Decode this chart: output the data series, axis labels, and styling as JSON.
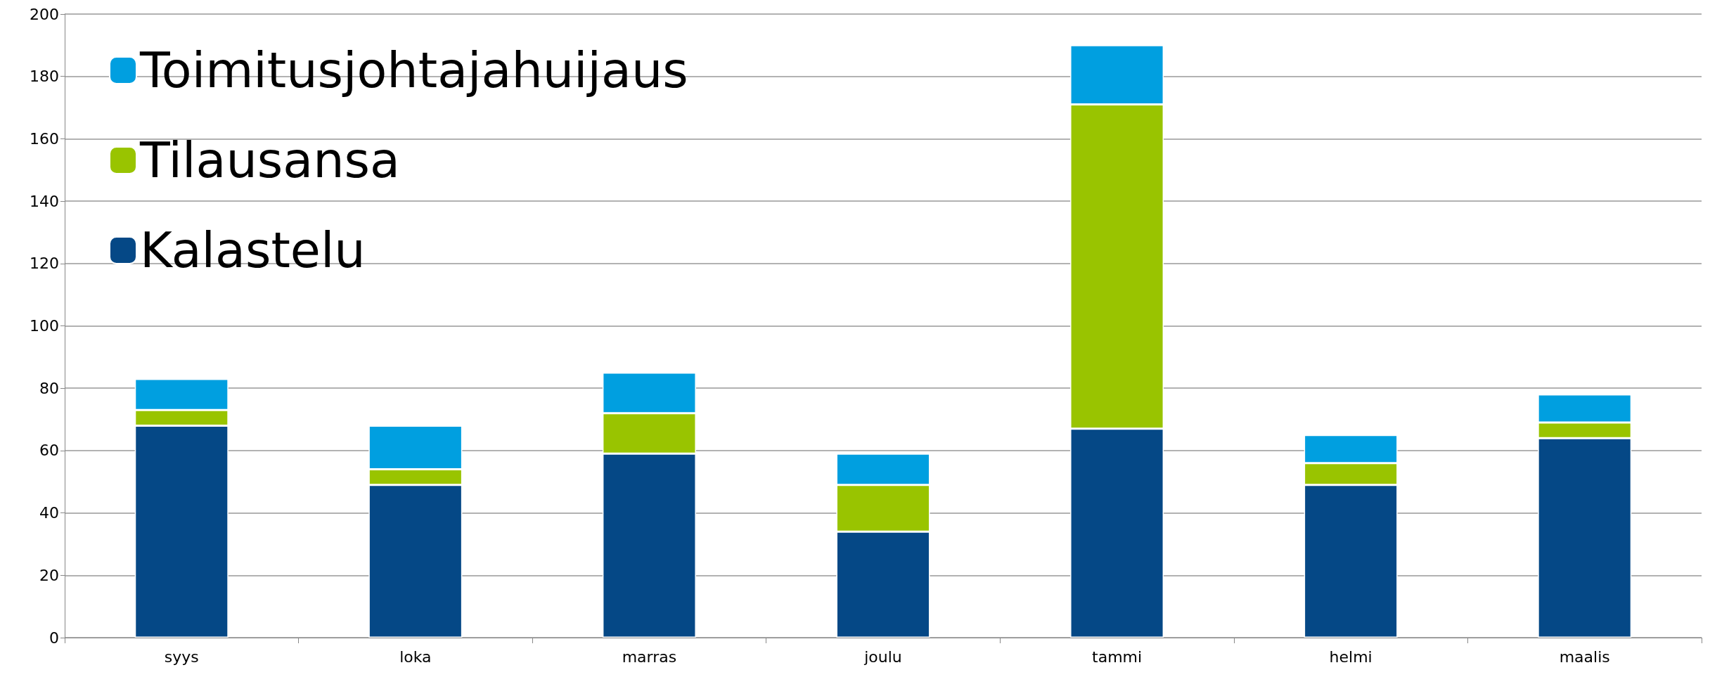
{
  "chart_data": {
    "type": "bar",
    "stacked": true,
    "categories": [
      "syys",
      "loka",
      "marras",
      "joulu",
      "tammi",
      "helmi",
      "maalis"
    ],
    "series": [
      {
        "name": "Kalastelu",
        "color": "#054886",
        "values": [
          68,
          49,
          59,
          34,
          67,
          49,
          64
        ]
      },
      {
        "name": "Tilausansa",
        "color": "#99c400",
        "values": [
          5,
          5,
          13,
          15,
          104,
          7,
          5
        ]
      },
      {
        "name": "Toimitusjohtajahuijaus",
        "color": "#009fe0",
        "values": [
          10,
          14,
          13,
          10,
          19,
          9,
          9
        ]
      }
    ],
    "ylim": [
      0,
      200
    ],
    "yticks": [
      0,
      20,
      40,
      60,
      80,
      100,
      120,
      140,
      160,
      180,
      200
    ],
    "grid": "y",
    "legend": "top left"
  }
}
